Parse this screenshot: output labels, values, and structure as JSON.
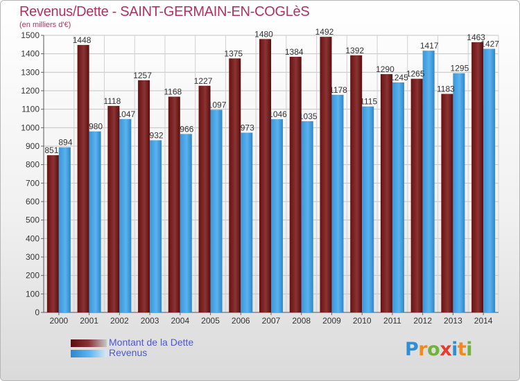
{
  "chart_data": {
    "type": "bar",
    "title": "Revenus/Dette - SAINT-GERMAIN-EN-COGLèS",
    "subtitle": "(en milliers d'€)",
    "categories": [
      "2000",
      "2001",
      "2002",
      "2003",
      "2004",
      "2005",
      "2006",
      "2007",
      "2008",
      "2009",
      "2010",
      "2011",
      "2012",
      "2013",
      "2014"
    ],
    "series": [
      {
        "name": "Montant de la Dette",
        "color": "#6b1a1a",
        "values": [
          851,
          1448,
          1118,
          1257,
          1168,
          1227,
          1375,
          1480,
          1384,
          1492,
          1392,
          1290,
          1265,
          1183,
          1463
        ],
        "labels": [
          "851",
          "1448",
          "1118",
          "1257",
          "1168",
          "1227",
          "1375",
          "1480",
          "1384",
          "1492",
          "1392",
          "1290",
          "1265",
          "1183",
          "1463"
        ]
      },
      {
        "name": "Revenus",
        "color": "#3d9ce0",
        "values": [
          894,
          980,
          1047,
          932,
          966,
          1097,
          973,
          1046,
          1035,
          1178,
          1115,
          1245,
          1417,
          1295,
          1427
        ],
        "labels": [
          "894",
          "980",
          "1047",
          "932",
          "966",
          "1097",
          "973",
          "1046",
          "1035",
          "1178",
          "1115",
          "1245",
          "1417",
          "1295",
          "1427"
        ]
      }
    ],
    "ylim": [
      0,
      1500
    ],
    "yticks": [
      0,
      100,
      200,
      300,
      400,
      500,
      600,
      700,
      800,
      900,
      1000,
      1100,
      1200,
      1300,
      1400,
      1500
    ],
    "grid": true,
    "legend_position": "bottom-left"
  },
  "legend": {
    "items": [
      {
        "label": "Montant de la Dette",
        "color": "#6b1a1a"
      },
      {
        "label": "Revenus",
        "color": "#3d9ce0"
      }
    ]
  },
  "logo": {
    "text": "Proxiti",
    "colors": [
      "#2e8fd6",
      "#f08a1c",
      "#6fb33a",
      "#e63c2f",
      "#2e8fd6",
      "#f08a1c",
      "#6fb33a"
    ]
  }
}
